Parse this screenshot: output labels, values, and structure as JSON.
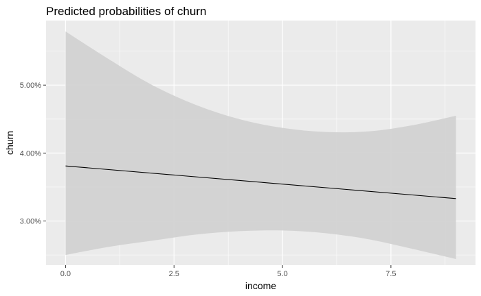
{
  "chart_data": {
    "type": "line",
    "title": "Predicted probabilities of churn",
    "xlabel": "income",
    "ylabel": "churn",
    "xlim": [
      -0.45,
      9.45
    ],
    "ylim": [
      2.35,
      5.95
    ],
    "x_ticks": [
      0,
      2.5,
      5,
      7.5
    ],
    "x_tick_labels": [
      "0.0",
      "2.5",
      "5.0",
      "7.5"
    ],
    "y_ticks": [
      3,
      4,
      5
    ],
    "y_tick_labels": [
      "3.00%",
      "4.00%",
      "5.00%"
    ],
    "x_minor_ticks": [
      1.25,
      3.75,
      6.25,
      8.75
    ],
    "y_minor_ticks": [
      2.5,
      3.5,
      4.5,
      5.5
    ],
    "y_unit": "percent",
    "grid": true,
    "legend": "none",
    "series": [
      {
        "x": [
          0,
          9
        ],
        "y": [
          3.81,
          3.33
        ],
        "color": "#000000"
      }
    ],
    "confidence_band": {
      "x": [
        0,
        1,
        2,
        3,
        4,
        5,
        6,
        7,
        8,
        9
      ],
      "lower": [
        2.5,
        2.62,
        2.71,
        2.8,
        2.85,
        2.86,
        2.82,
        2.73,
        2.59,
        2.44
      ],
      "upper": [
        5.79,
        5.38,
        5.0,
        4.71,
        4.5,
        4.37,
        4.31,
        4.32,
        4.41,
        4.55
      ],
      "color": "#d2d2d2"
    },
    "colors": {
      "panel_background": "#ebebeb",
      "grid": "#ffffff",
      "band": "#d2d2d2",
      "line": "#000000"
    }
  }
}
